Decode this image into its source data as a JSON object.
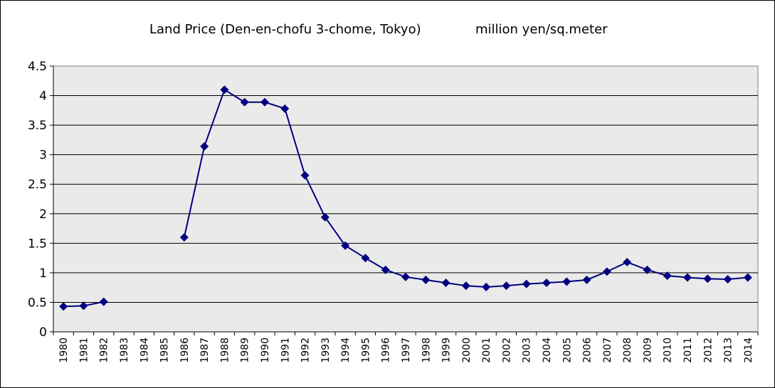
{
  "chart_data": {
    "type": "line",
    "title": "Land Price (Den-en-chofu 3-chome, Tokyo)",
    "unit_label": "million yen/sq.meter",
    "ylim": [
      0,
      4.5
    ],
    "y_ticks": [
      "0",
      "0.5",
      "1",
      "1.5",
      "2",
      "2.5",
      "3",
      "3.5",
      "4",
      "4.5"
    ],
    "grid": true,
    "legend": "none",
    "colors": {
      "line": "#000080",
      "plot_bg": "#eaeaea"
    },
    "categories": [
      "1980",
      "1981",
      "1982",
      "1983",
      "1984",
      "1985",
      "1986",
      "1987",
      "1988",
      "1989",
      "1990",
      "1991",
      "1992",
      "1993",
      "1994",
      "1995",
      "1996",
      "1997",
      "1998",
      "1999",
      "2000",
      "2001",
      "2002",
      "2003",
      "2004",
      "2005",
      "2006",
      "2007",
      "2008",
      "2009",
      "2010",
      "2011",
      "2012",
      "2013",
      "2014"
    ],
    "series": [
      {
        "values": [
          0.43,
          0.44,
          0.51,
          null,
          null,
          null,
          1.6,
          3.14,
          4.1,
          3.89,
          3.89,
          3.78,
          2.65,
          1.94,
          1.46,
          1.25,
          1.05,
          0.93,
          0.88,
          0.83,
          0.78,
          0.76,
          0.78,
          0.81,
          0.83,
          0.85,
          0.88,
          1.02,
          1.18,
          1.05,
          0.95,
          0.92,
          0.9,
          0.89,
          0.92
        ]
      }
    ]
  }
}
